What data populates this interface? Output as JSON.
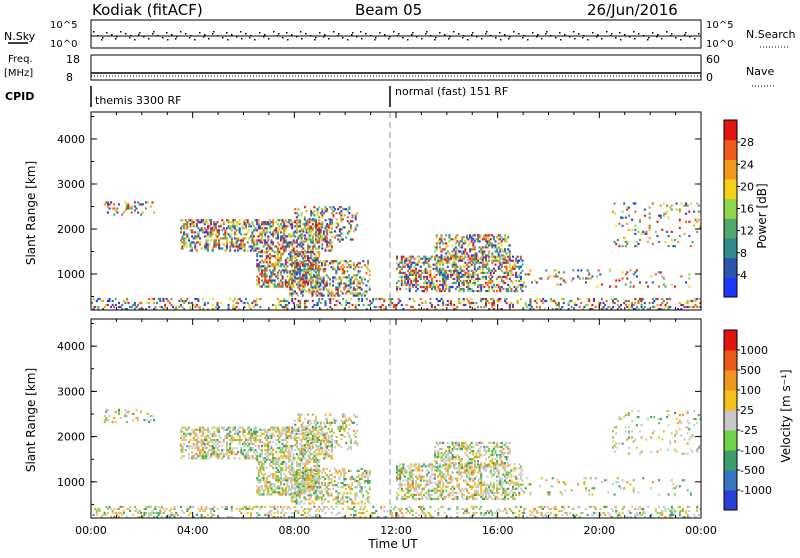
{
  "header": {
    "station": "Kodiak (fitACF)",
    "beam": "Beam 05",
    "date": "26/Jun/2016"
  },
  "side_labels": {
    "nsky": "N.Sky",
    "freq_line1": "Freq.",
    "freq_line2": "[MHz]",
    "cpid": "CPID",
    "nsearch": "N.Search",
    "nave": "Nave"
  },
  "cpid_labels": {
    "left": "themis 3300 RF",
    "right": "normal (fast) 151 RF"
  },
  "small_axes": {
    "noise_ticks_left": [
      "10^5",
      "10^0"
    ],
    "noise_ticks_right": [
      "10^5",
      "10^0"
    ],
    "freq_ticks_left": [
      "18",
      "8"
    ],
    "nave_ticks_right": [
      "60",
      "0"
    ]
  },
  "chart_data": [
    {
      "type": "heatmap",
      "name": "power",
      "xlabel": "",
      "ylabel": "Slant Range [km]",
      "xlim": [
        0,
        24
      ],
      "ylim": [
        200,
        4600
      ],
      "yticks": [
        1000,
        2000,
        3000,
        4000
      ],
      "colorbar": {
        "label": "Power [dB]",
        "ticks": [
          "4",
          "8",
          "12",
          "16",
          "20",
          "24",
          "28"
        ],
        "colors": [
          "#1f38ff",
          "#2a56b0",
          "#2f8c8e",
          "#52a86a",
          "#8fd64a",
          "#f5d21a",
          "#f39a1e",
          "#ef5b1a",
          "#e41414"
        ]
      }
    },
    {
      "type": "heatmap",
      "name": "velocity",
      "xlabel": "Time UT",
      "ylabel": "Slant Range [km]",
      "xlim": [
        0,
        24
      ],
      "ylim": [
        200,
        4600
      ],
      "yticks": [
        1000,
        2000,
        3000,
        4000
      ],
      "xticks": [
        "00:00",
        "04:00",
        "08:00",
        "12:00",
        "16:00",
        "20:00",
        "00:00"
      ],
      "colorbar": {
        "label": "Velocity [m s⁻¹]",
        "ticks": [
          "1000",
          "500",
          "100",
          "25",
          "-25",
          "-100",
          "-500",
          "-1000"
        ],
        "colors": [
          "#2a3ed8",
          "#3a74c4",
          "#3aa06a",
          "#6fd24a",
          "#c8c8c8",
          "#f5c11a",
          "#f0951e",
          "#ec5a1a",
          "#e11414"
        ]
      }
    }
  ]
}
